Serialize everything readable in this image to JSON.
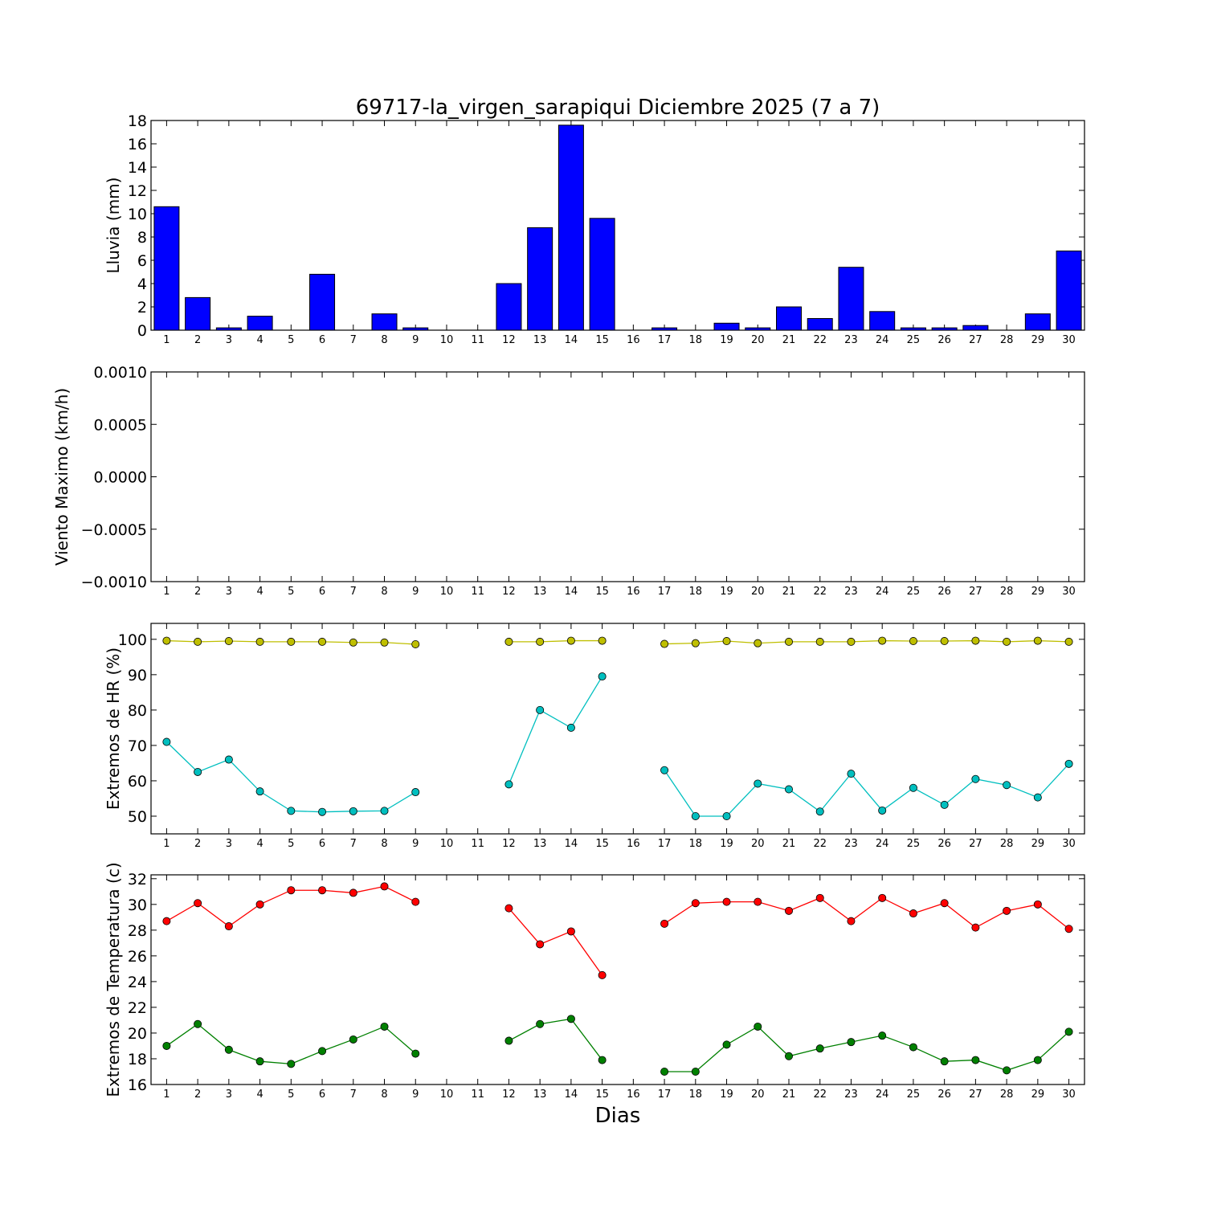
{
  "figure": {
    "title": "69717-la_virgen_sarapiqui Diciembre 2025  (7 a 7)",
    "xlabel": "Dias"
  },
  "chart_data": [
    {
      "type": "bar",
      "ylabel": "Lluvia (mm)",
      "ylim": [
        0,
        18
      ],
      "yticks": [
        0,
        2,
        4,
        6,
        8,
        10,
        12,
        14,
        16,
        18
      ],
      "ytick_labels": [
        "0",
        "2",
        "4",
        "6",
        "8",
        "10",
        "12",
        "14",
        "16",
        "18"
      ],
      "categories": [
        1,
        2,
        3,
        4,
        5,
        6,
        7,
        8,
        9,
        10,
        11,
        12,
        13,
        14,
        15,
        16,
        17,
        18,
        19,
        20,
        21,
        22,
        23,
        24,
        25,
        26,
        27,
        28,
        29,
        30
      ],
      "series": [
        {
          "color": "#0000ff",
          "values": [
            10.6,
            2.8,
            0.2,
            1.2,
            0,
            4.8,
            0,
            1.4,
            0.2,
            0,
            0,
            4.0,
            8.8,
            17.6,
            9.6,
            0,
            0.2,
            0,
            0.6,
            0.2,
            2.0,
            1.0,
            5.4,
            1.6,
            0.2,
            0.2,
            0.4,
            0,
            1.4,
            6.8
          ]
        }
      ]
    },
    {
      "type": "line",
      "ylabel": "Viento Maximo (km/h)",
      "ylim": [
        -0.001,
        0.001
      ],
      "yticks": [
        -0.001,
        -0.0005,
        0,
        0.0005,
        0.001
      ],
      "ytick_labels": [
        "−0.0010",
        "−0.0005",
        "0.0000",
        "0.0005",
        "0.0010"
      ],
      "categories": [
        1,
        2,
        3,
        4,
        5,
        6,
        7,
        8,
        9,
        10,
        11,
        12,
        13,
        14,
        15,
        16,
        17,
        18,
        19,
        20,
        21,
        22,
        23,
        24,
        25,
        26,
        27,
        28,
        29,
        30
      ],
      "series": []
    },
    {
      "type": "line",
      "ylabel": "Extremos de HR (%)",
      "ylim": [
        45,
        104.5
      ],
      "yticks": [
        50,
        60,
        70,
        80,
        90,
        100
      ],
      "ytick_labels": [
        "50",
        "60",
        "70",
        "80",
        "90",
        "100"
      ],
      "categories": [
        1,
        2,
        3,
        4,
        5,
        6,
        7,
        8,
        9,
        10,
        11,
        12,
        13,
        14,
        15,
        16,
        17,
        18,
        19,
        20,
        21,
        22,
        23,
        24,
        25,
        26,
        27,
        28,
        29,
        30
      ],
      "series": [
        {
          "color": "#bfbf00",
          "values": [
            99.6,
            99.3,
            99.5,
            99.3,
            99.3,
            99.3,
            99.1,
            99.1,
            98.6,
            null,
            null,
            99.3,
            99.3,
            99.6,
            99.6,
            null,
            98.7,
            98.9,
            99.5,
            98.9,
            99.3,
            99.3,
            99.3,
            99.6,
            99.5,
            99.5,
            99.6,
            99.3,
            99.6,
            99.3
          ]
        },
        {
          "color": "#00bfbf",
          "values": [
            71.0,
            62.5,
            66.0,
            57.0,
            51.5,
            51.2,
            51.4,
            51.5,
            56.8,
            null,
            null,
            59.0,
            80.0,
            75.0,
            89.5,
            null,
            63.0,
            50.0,
            50.0,
            59.2,
            57.6,
            51.3,
            62.0,
            51.6,
            58.0,
            53.2,
            60.5,
            58.8,
            55.3,
            64.8
          ]
        }
      ]
    },
    {
      "type": "line",
      "ylabel": "Extremos de Temperatura (c)",
      "ylim": [
        16,
        32.3
      ],
      "yticks": [
        16,
        18,
        20,
        22,
        24,
        26,
        28,
        30,
        32
      ],
      "ytick_labels": [
        "16",
        "18",
        "20",
        "22",
        "24",
        "26",
        "28",
        "30",
        "32"
      ],
      "categories": [
        1,
        2,
        3,
        4,
        5,
        6,
        7,
        8,
        9,
        10,
        11,
        12,
        13,
        14,
        15,
        16,
        17,
        18,
        19,
        20,
        21,
        22,
        23,
        24,
        25,
        26,
        27,
        28,
        29,
        30
      ],
      "series": [
        {
          "color": "#ff0000",
          "values": [
            28.7,
            30.1,
            28.3,
            30.0,
            31.1,
            31.1,
            30.9,
            31.4,
            30.2,
            null,
            null,
            29.7,
            26.9,
            27.9,
            24.5,
            null,
            28.5,
            30.1,
            30.2,
            30.2,
            29.5,
            30.5,
            28.7,
            30.5,
            29.3,
            30.1,
            28.2,
            29.5,
            30.0,
            28.1
          ]
        },
        {
          "color": "#008000",
          "values": [
            19.0,
            20.7,
            18.7,
            17.8,
            17.6,
            18.6,
            19.5,
            20.5,
            18.4,
            null,
            null,
            19.4,
            20.7,
            21.1,
            17.9,
            null,
            17.0,
            17.0,
            19.1,
            20.5,
            18.2,
            18.8,
            19.3,
            19.8,
            18.9,
            17.8,
            17.9,
            17.1,
            17.9,
            20.1
          ]
        }
      ]
    }
  ]
}
